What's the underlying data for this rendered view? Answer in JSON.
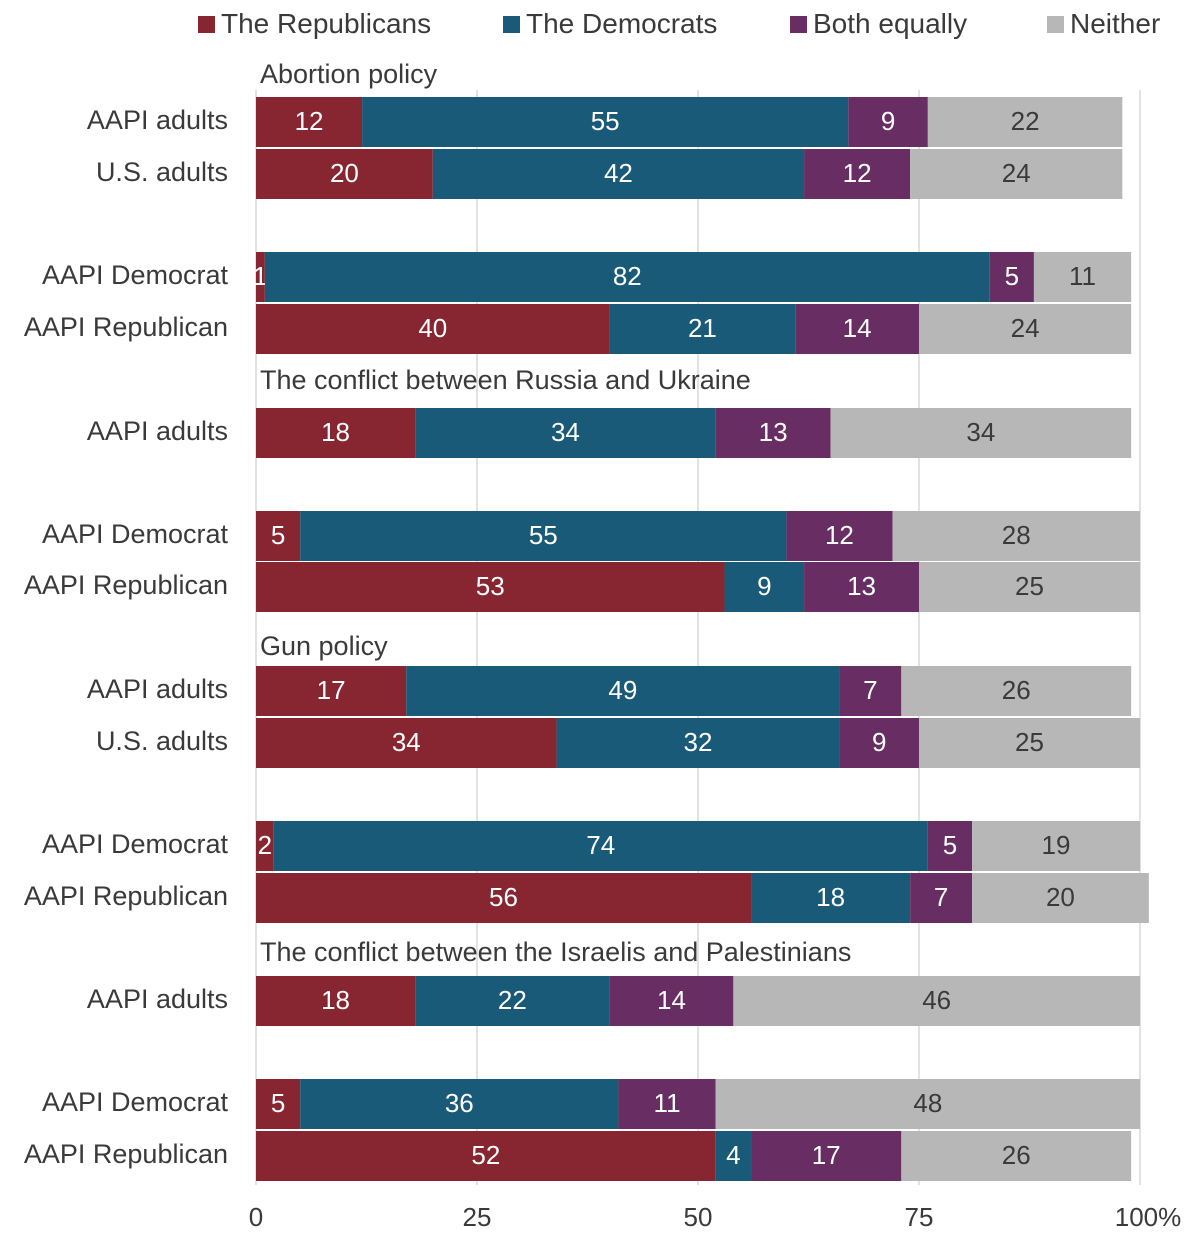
{
  "chart_data": {
    "type": "bar",
    "orientation": "horizontal",
    "stacked": true,
    "legend_position": "top",
    "grid": true,
    "xlim": [
      0,
      100
    ],
    "x_ticks": [
      "0",
      "25",
      "50",
      "75",
      "100%"
    ],
    "series": [
      {
        "name": "The Republicans",
        "color": "#872631"
      },
      {
        "name": "The Democrats",
        "color": "#195a78"
      },
      {
        "name": "Both equally",
        "color": "#682e63"
      },
      {
        "name": "Neither",
        "color": "#b7b7b7"
      }
    ],
    "sections": [
      {
        "title": "Abortion policy",
        "rows": [
          {
            "label": "AAPI adults",
            "values": [
              12,
              55,
              9,
              22
            ]
          },
          {
            "label": "U.S. adults",
            "values": [
              20,
              42,
              12,
              24
            ]
          },
          {
            "label": "AAPI Democrat",
            "values": [
              1,
              82,
              5,
              11
            ]
          },
          {
            "label": "AAPI Republican",
            "values": [
              40,
              21,
              14,
              24
            ]
          }
        ]
      },
      {
        "title": "The conflict between Russia and Ukraine",
        "rows": [
          {
            "label": "AAPI adults",
            "values": [
              18,
              34,
              13,
              34
            ]
          },
          {
            "label": "AAPI Democrat",
            "values": [
              5,
              55,
              12,
              28
            ]
          },
          {
            "label": "AAPI Republican",
            "values": [
              53,
              9,
              13,
              25
            ]
          }
        ]
      },
      {
        "title": "Gun policy",
        "rows": [
          {
            "label": "AAPI adults",
            "values": [
              17,
              49,
              7,
              26
            ]
          },
          {
            "label": "U.S. adults",
            "values": [
              34,
              32,
              9,
              25
            ]
          },
          {
            "label": "AAPI Democrat",
            "values": [
              2,
              74,
              5,
              19
            ]
          },
          {
            "label": "AAPI Republican",
            "values": [
              56,
              18,
              7,
              20
            ]
          }
        ]
      },
      {
        "title": "The conflict between the Israelis and Palestinians",
        "rows": [
          {
            "label": "AAPI adults",
            "values": [
              18,
              22,
              14,
              46
            ]
          },
          {
            "label": "AAPI Democrat",
            "values": [
              5,
              36,
              11,
              48
            ]
          },
          {
            "label": "AAPI Republican",
            "values": [
              52,
              4,
              17,
              26
            ]
          }
        ]
      }
    ]
  }
}
